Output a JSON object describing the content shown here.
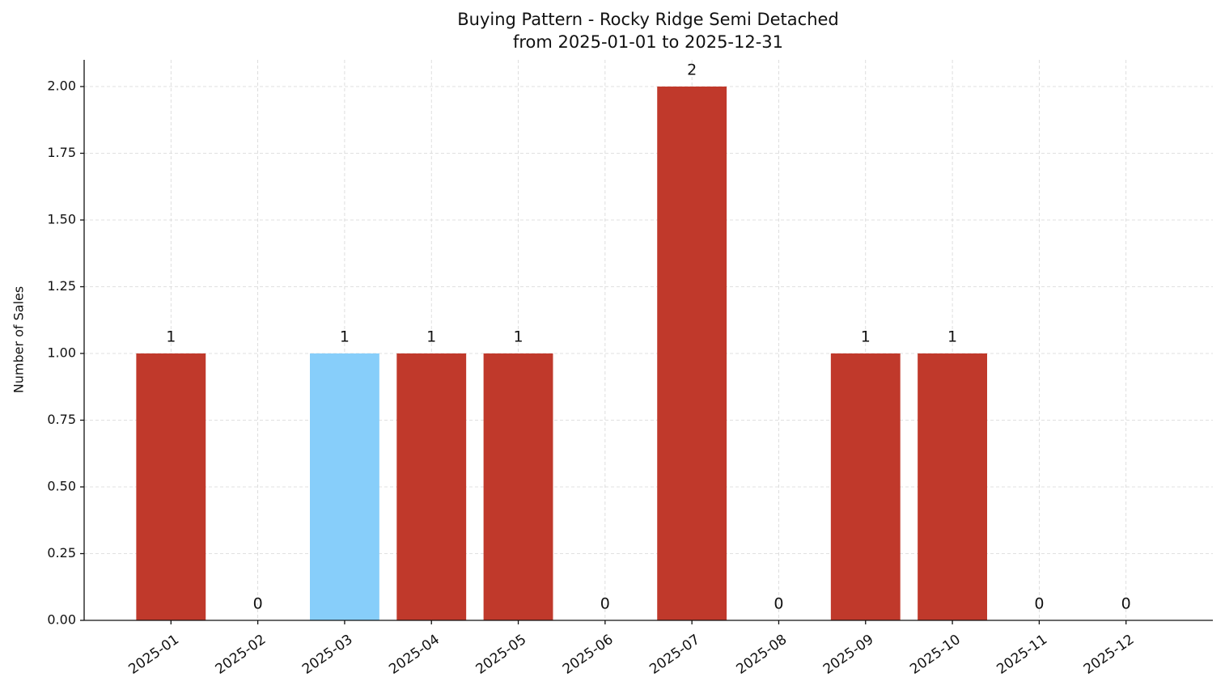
{
  "chart_data": {
    "type": "bar",
    "title": "Buying Pattern - Rocky Ridge Semi Detached",
    "subtitle": "from 2025-01-01 to 2025-12-31",
    "y_label": "Number of Sales",
    "categories": [
      "2025-01",
      "2025-02",
      "2025-03",
      "2025-04",
      "2025-05",
      "2025-06",
      "2025-07",
      "2025-08",
      "2025-09",
      "2025-10",
      "2025-11",
      "2025-12"
    ],
    "values": [
      1,
      0,
      1,
      1,
      1,
      0,
      2,
      0,
      1,
      1,
      0,
      0
    ],
    "colors": [
      "#c0392b",
      "#c0392b",
      "#87cefa",
      "#c0392b",
      "#c0392b",
      "#c0392b",
      "#c0392b",
      "#c0392b",
      "#c0392b",
      "#c0392b",
      "#c0392b",
      "#c0392b"
    ],
    "ylim": [
      0,
      2.1
    ],
    "yticks": [
      {
        "value": 0,
        "label": "0.00"
      },
      0.25,
      {
        "value": 0.5,
        "label": "0.50"
      },
      0.75,
      {
        "value": 1,
        "label": "1.00"
      },
      1.25,
      {
        "value": 1.5,
        "label": "1.50"
      },
      1.75,
      {
        "value": 2,
        "label": "2.00"
      }
    ],
    "grid": true
  }
}
